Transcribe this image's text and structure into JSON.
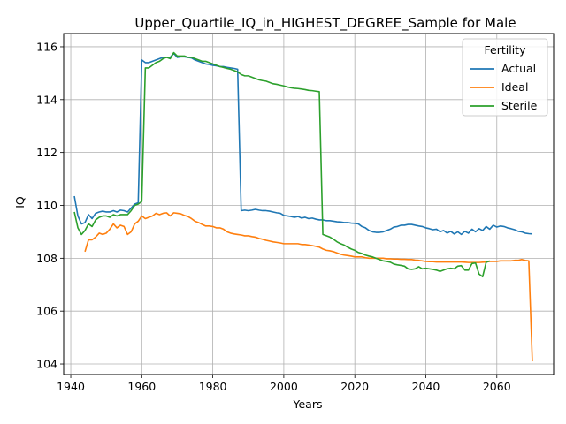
{
  "chart_data": {
    "type": "line",
    "title": "Upper_Quartile_IQ_in_HIGHEST_DEGREE_Sample for Male",
    "xlabel": "Years",
    "ylabel": "IQ",
    "xlim": [
      1938,
      2076
    ],
    "ylim": [
      103.6,
      116.5
    ],
    "xticks": [
      1940,
      1960,
      1980,
      2000,
      2020,
      2040,
      2060
    ],
    "yticks": [
      104,
      106,
      108,
      110,
      112,
      114,
      116
    ],
    "grid": true,
    "legend": {
      "title": "Fertility",
      "placement": "top-right"
    },
    "series": [
      {
        "name": "Actual",
        "color": "#1f77b4",
        "x": [
          1941,
          1942,
          1943,
          1944,
          1945,
          1946,
          1947,
          1948,
          1949,
          1950,
          1951,
          1952,
          1953,
          1954,
          1955,
          1956,
          1957,
          1958,
          1959,
          1960,
          1961,
          1962,
          1963,
          1964,
          1965,
          1966,
          1967,
          1968,
          1969,
          1970,
          1971,
          1972,
          1973,
          1974,
          1975,
          1976,
          1977,
          1978,
          1979,
          1980,
          1981,
          1982,
          1983,
          1984,
          1985,
          1986,
          1987,
          1988,
          1989,
          1990,
          1991,
          1992,
          1993,
          1994,
          1995,
          1996,
          1997,
          1998,
          1999,
          2000,
          2001,
          2002,
          2003,
          2004,
          2005,
          2006,
          2007,
          2008,
          2009,
          2010,
          2011,
          2012,
          2013,
          2014,
          2015,
          2016,
          2017,
          2018,
          2019,
          2020,
          2021,
          2022,
          2023,
          2024,
          2025,
          2026,
          2027,
          2028,
          2029,
          2030,
          2031,
          2032,
          2033,
          2034,
          2035,
          2036,
          2037,
          2038,
          2039,
          2040,
          2041,
          2042,
          2043,
          2044,
          2045,
          2046,
          2047,
          2048,
          2049,
          2050,
          2051,
          2052,
          2053,
          2054,
          2055,
          2056,
          2057,
          2058,
          2059,
          2060,
          2061,
          2062,
          2063,
          2064,
          2065,
          2066,
          2067,
          2068,
          2069,
          2070
        ],
        "values": [
          110.35,
          109.6,
          109.3,
          109.35,
          109.65,
          109.5,
          109.7,
          109.75,
          109.78,
          109.75,
          109.75,
          109.8,
          109.75,
          109.82,
          109.8,
          109.75,
          109.9,
          110.05,
          110.1,
          115.5,
          115.4,
          115.4,
          115.45,
          115.5,
          115.55,
          115.6,
          115.6,
          115.6,
          115.75,
          115.6,
          115.62,
          115.62,
          115.6,
          115.58,
          115.5,
          115.45,
          115.4,
          115.35,
          115.33,
          115.3,
          115.28,
          115.25,
          115.25,
          115.22,
          115.2,
          115.18,
          115.15,
          109.8,
          109.82,
          109.8,
          109.82,
          109.85,
          109.82,
          109.8,
          109.8,
          109.78,
          109.75,
          109.72,
          109.7,
          109.62,
          109.6,
          109.58,
          109.55,
          109.58,
          109.52,
          109.55,
          109.5,
          109.52,
          109.48,
          109.45,
          109.45,
          109.42,
          109.42,
          109.4,
          109.38,
          109.37,
          109.35,
          109.35,
          109.33,
          109.32,
          109.3,
          109.2,
          109.15,
          109.05,
          109.0,
          108.98,
          108.98,
          109.0,
          109.05,
          109.1,
          109.18,
          109.2,
          109.25,
          109.25,
          109.28,
          109.28,
          109.25,
          109.22,
          109.2,
          109.15,
          109.12,
          109.08,
          109.1,
          109.0,
          109.05,
          108.95,
          109.02,
          108.92,
          109.0,
          108.9,
          109.02,
          108.95,
          109.1,
          109.0,
          109.12,
          109.05,
          109.2,
          109.1,
          109.25,
          109.18,
          109.22,
          109.2,
          109.15,
          109.12,
          109.08,
          109.02,
          109.0,
          108.95,
          108.93,
          108.92
        ]
      },
      {
        "name": "Ideal",
        "color": "#ff7f0e",
        "x": [
          1944,
          1945,
          1946,
          1947,
          1948,
          1949,
          1950,
          1951,
          1952,
          1953,
          1954,
          1955,
          1956,
          1957,
          1958,
          1959,
          1960,
          1961,
          1962,
          1963,
          1964,
          1965,
          1966,
          1967,
          1968,
          1969,
          1970,
          1971,
          1972,
          1973,
          1974,
          1975,
          1976,
          1977,
          1978,
          1979,
          1980,
          1981,
          1982,
          1983,
          1984,
          1985,
          1986,
          1987,
          1988,
          1989,
          1990,
          1991,
          1992,
          1993,
          1994,
          1995,
          1996,
          1997,
          1998,
          1999,
          2000,
          2001,
          2002,
          2003,
          2004,
          2005,
          2006,
          2007,
          2008,
          2009,
          2010,
          2011,
          2012,
          2013,
          2014,
          2015,
          2016,
          2017,
          2018,
          2019,
          2020,
          2021,
          2022,
          2023,
          2024,
          2025,
          2026,
          2027,
          2028,
          2029,
          2030,
          2031,
          2032,
          2033,
          2034,
          2035,
          2036,
          2037,
          2038,
          2039,
          2040,
          2041,
          2042,
          2043,
          2044,
          2045,
          2046,
          2047,
          2048,
          2049,
          2050,
          2051,
          2052,
          2053,
          2054,
          2055,
          2056,
          2057,
          2058,
          2059,
          2060,
          2061,
          2062,
          2063,
          2064,
          2065,
          2066,
          2067,
          2068,
          2069,
          2070
        ],
        "values": [
          108.25,
          108.7,
          108.7,
          108.8,
          108.95,
          108.9,
          108.95,
          109.1,
          109.3,
          109.15,
          109.25,
          109.2,
          108.9,
          109.0,
          109.3,
          109.4,
          109.6,
          109.5,
          109.55,
          109.6,
          109.7,
          109.65,
          109.7,
          109.72,
          109.6,
          109.72,
          109.7,
          109.68,
          109.62,
          109.58,
          109.5,
          109.4,
          109.35,
          109.28,
          109.22,
          109.22,
          109.2,
          109.15,
          109.15,
          109.1,
          109.0,
          108.95,
          108.92,
          108.9,
          108.88,
          108.85,
          108.85,
          108.82,
          108.8,
          108.75,
          108.72,
          108.68,
          108.65,
          108.62,
          108.6,
          108.58,
          108.55,
          108.55,
          108.55,
          108.55,
          108.55,
          108.52,
          108.52,
          108.5,
          108.48,
          108.45,
          108.42,
          108.35,
          108.3,
          108.28,
          108.25,
          108.2,
          108.15,
          108.12,
          108.1,
          108.08,
          108.05,
          108.05,
          108.05,
          108.02,
          108.0,
          108.0,
          108.0,
          108.0,
          108.0,
          107.98,
          107.98,
          107.97,
          107.97,
          107.96,
          107.96,
          107.95,
          107.95,
          107.93,
          107.92,
          107.9,
          107.88,
          107.87,
          107.87,
          107.86,
          107.86,
          107.86,
          107.86,
          107.86,
          107.86,
          107.86,
          107.86,
          107.85,
          107.84,
          107.84,
          107.84,
          107.84,
          107.85,
          107.86,
          107.88,
          107.88,
          107.88,
          107.9,
          107.9,
          107.9,
          107.9,
          107.92,
          107.92,
          107.95,
          107.92,
          107.9,
          104.1
        ]
      },
      {
        "name": "Sterile",
        "color": "#2ca02c",
        "x": [
          1941,
          1942,
          1943,
          1944,
          1945,
          1946,
          1947,
          1948,
          1949,
          1950,
          1951,
          1952,
          1953,
          1954,
          1955,
          1956,
          1957,
          1958,
          1959,
          1960,
          1961,
          1962,
          1963,
          1964,
          1965,
          1966,
          1967,
          1968,
          1969,
          1970,
          1971,
          1972,
          1973,
          1974,
          1975,
          1976,
          1977,
          1978,
          1979,
          1980,
          1981,
          1982,
          1983,
          1984,
          1985,
          1986,
          1987,
          1988,
          1989,
          1990,
          1991,
          1992,
          1993,
          1994,
          1995,
          1996,
          1997,
          1998,
          1999,
          2000,
          2001,
          2002,
          2003,
          2004,
          2005,
          2006,
          2007,
          2008,
          2009,
          2010,
          2011,
          2012,
          2013,
          2014,
          2015,
          2016,
          2017,
          2018,
          2019,
          2020,
          2021,
          2022,
          2023,
          2024,
          2025,
          2026,
          2027,
          2028,
          2029,
          2030,
          2031,
          2032,
          2033,
          2034,
          2035,
          2036,
          2037,
          2038,
          2039,
          2040,
          2041,
          2042,
          2043,
          2044,
          2045,
          2046,
          2047,
          2048,
          2049,
          2050,
          2051,
          2052,
          2053,
          2054,
          2055,
          2056,
          2057,
          2058
        ],
        "values": [
          109.75,
          109.15,
          108.9,
          109.05,
          109.3,
          109.2,
          109.45,
          109.55,
          109.6,
          109.6,
          109.55,
          109.65,
          109.6,
          109.65,
          109.65,
          109.65,
          109.8,
          110.0,
          110.05,
          110.15,
          115.2,
          115.2,
          115.3,
          115.4,
          115.45,
          115.55,
          115.6,
          115.55,
          115.78,
          115.65,
          115.65,
          115.65,
          115.6,
          115.6,
          115.55,
          115.5,
          115.45,
          115.45,
          115.4,
          115.35,
          115.3,
          115.25,
          115.22,
          115.18,
          115.15,
          115.1,
          115.05,
          114.95,
          114.9,
          114.9,
          114.85,
          114.8,
          114.75,
          114.72,
          114.7,
          114.65,
          114.6,
          114.58,
          114.55,
          114.52,
          114.48,
          114.45,
          114.43,
          114.42,
          114.4,
          114.38,
          114.35,
          114.34,
          114.32,
          114.3,
          108.9,
          108.85,
          108.8,
          108.72,
          108.62,
          108.55,
          108.5,
          108.42,
          108.35,
          108.3,
          108.22,
          108.18,
          108.12,
          108.08,
          108.05,
          108.0,
          107.95,
          107.9,
          107.88,
          107.85,
          107.78,
          107.75,
          107.73,
          107.7,
          107.6,
          107.58,
          107.6,
          107.68,
          107.6,
          107.62,
          107.6,
          107.58,
          107.55,
          107.5,
          107.55,
          107.6,
          107.62,
          107.6,
          107.7,
          107.72,
          107.55,
          107.55,
          107.8,
          107.82,
          107.4,
          107.3,
          107.85,
          107.9
        ]
      }
    ]
  }
}
